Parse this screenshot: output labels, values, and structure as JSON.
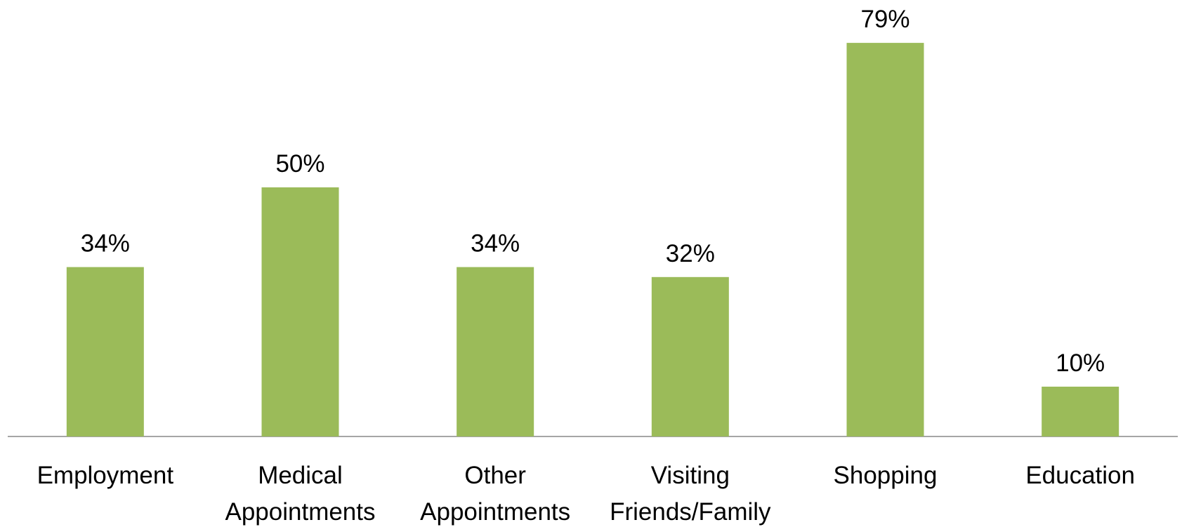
{
  "chart_data": {
    "type": "bar",
    "categories": [
      "Employment",
      "Medical Appointments",
      "Other Appointments",
      "Visiting Friends/Family",
      "Shopping",
      "Education"
    ],
    "values": [
      34,
      50,
      34,
      32,
      79,
      10
    ],
    "value_labels": [
      "34%",
      "50%",
      "34%",
      "32%",
      "79%",
      "10%"
    ],
    "color": "#9bbb59"
  }
}
